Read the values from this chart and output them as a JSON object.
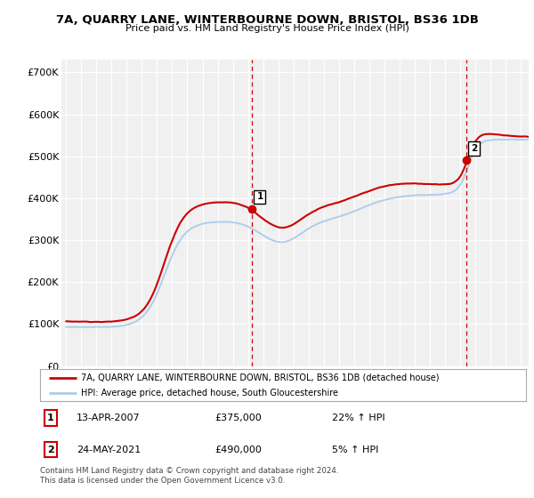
{
  "title": "7A, QUARRY LANE, WINTERBOURNE DOWN, BRISTOL, BS36 1DB",
  "subtitle": "Price paid vs. HM Land Registry's House Price Index (HPI)",
  "legend_line1": "7A, QUARRY LANE, WINTERBOURNE DOWN, BRISTOL, BS36 1DB (detached house)",
  "legend_line2": "HPI: Average price, detached house, South Gloucestershire",
  "annotation1": {
    "num": "1",
    "date": "13-APR-2007",
    "price": "£375,000",
    "change": "22% ↑ HPI"
  },
  "annotation2": {
    "num": "2",
    "date": "24-MAY-2021",
    "price": "£490,000",
    "change": "5% ↑ HPI"
  },
  "footer": "Contains HM Land Registry data © Crown copyright and database right 2024.\nThis data is licensed under the Open Government Licence v3.0.",
  "price_color": "#cc0000",
  "hpi_color": "#aaccee",
  "background_color": "#ffffff",
  "plot_bg_color": "#f0f0f0",
  "ylim": [
    0,
    730000
  ],
  "yticks": [
    0,
    100000,
    200000,
    300000,
    400000,
    500000,
    600000,
    700000
  ],
  "ytick_labels": [
    "£0",
    "£100K",
    "£200K",
    "£300K",
    "£400K",
    "£500K",
    "£600K",
    "£700K"
  ],
  "sale1_x": 2007.28,
  "sale1_y": 375000,
  "sale2_x": 2021.38,
  "sale2_y": 490000,
  "xmin": 1994.7,
  "xmax": 2025.5
}
